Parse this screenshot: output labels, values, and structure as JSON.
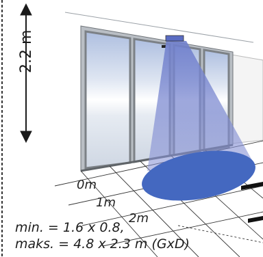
{
  "height_label": "2.2 m",
  "distance_labels": [
    "0m",
    "1m",
    "2m"
  ],
  "range_min": "min. = 1.6 x 0.8,",
  "range_max": "maks. = 4.8 x 2.3 m (GxD)",
  "colors": {
    "beam": "#7a86d0",
    "detection_area": "#4468c0",
    "frame": "#8e9296",
    "glass": "#c7d3e7",
    "arrow": "#1a1a1a"
  }
}
